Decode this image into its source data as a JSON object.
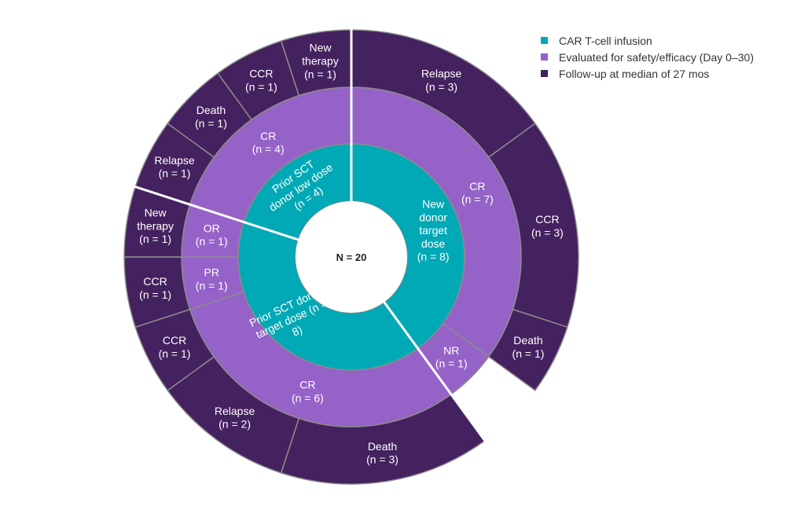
{
  "chart_data": {
    "type": "sunburst",
    "center_label": "N = 20",
    "total": 20,
    "colors": {
      "infusion": "#00A9B5",
      "evaluated": "#9562C8",
      "followup": "#44215F"
    },
    "legend": [
      {
        "key": "infusion",
        "label": "CAR T-cell infusion"
      },
      {
        "key": "evaluated",
        "label": "Evaluated for safety/efficacy (Day 0–30)"
      },
      {
        "key": "followup",
        "label": "Follow-up at median of 27 mos"
      }
    ],
    "groups": [
      {
        "label": "New donor target dose",
        "n": 8,
        "text": [
          "New",
          "donor",
          "target",
          "dose",
          "(n = 8)"
        ],
        "responses": [
          {
            "label": "CR",
            "n": 7,
            "followup": [
              {
                "label": "Relapse",
                "n": 3
              },
              {
                "label": "CCR",
                "n": 3
              },
              {
                "label": "Death",
                "n": 1
              }
            ]
          },
          {
            "label": "NR",
            "n": 1,
            "followup": []
          }
        ]
      },
      {
        "label": "Prior SCT donor target dose",
        "n": 8,
        "text": [
          "Prior SCT donor",
          "target dose (n =",
          "8)"
        ],
        "responses": [
          {
            "label": "CR",
            "n": 6,
            "followup": [
              {
                "label": "Death",
                "n": 3
              },
              {
                "label": "Relapse",
                "n": 2
              },
              {
                "label": "CCR",
                "n": 1
              }
            ]
          },
          {
            "label": "PR",
            "n": 1,
            "followup": [
              {
                "label": "CCR",
                "n": 1
              }
            ]
          },
          {
            "label": "OR",
            "n": 1,
            "followup": [
              {
                "label": "New therapy",
                "n": 1
              }
            ]
          }
        ]
      },
      {
        "label": "Prior SCT donor low dose",
        "n": 4,
        "text": [
          "Prior SCT",
          "donor low dose",
          "(n = 4)"
        ],
        "responses": [
          {
            "label": "CR",
            "n": 4,
            "followup": [
              {
                "label": "Relapse",
                "n": 1
              },
              {
                "label": "Death",
                "n": 1
              },
              {
                "label": "CCR",
                "n": 1
              },
              {
                "label": "New therapy",
                "n": 1
              }
            ]
          }
        ]
      }
    ]
  }
}
